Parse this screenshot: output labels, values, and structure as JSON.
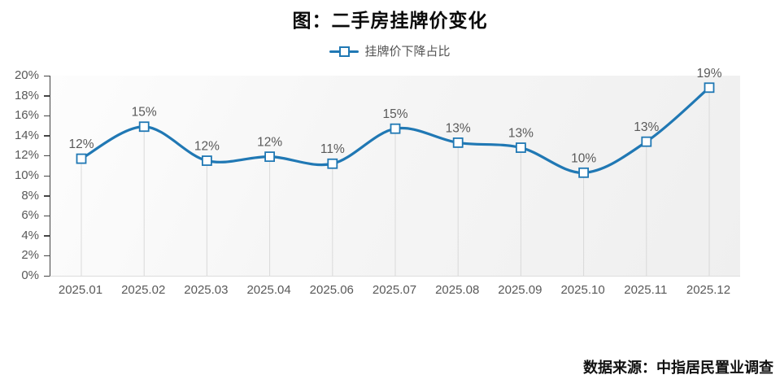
{
  "chart": {
    "title": "图：二手房挂牌价变化",
    "legend": "挂牌价下降占比",
    "source": "数据来源：中指居民置业调查",
    "accent_color": "#2078b4"
  },
  "chart_data": {
    "type": "line",
    "title": "图：二手房挂牌价变化",
    "series_name": "挂牌价下降占比",
    "categories": [
      "2025.01",
      "2025.02",
      "2025.03",
      "2025.04",
      "2025.06",
      "2025.07",
      "2025.08",
      "2025.09",
      "2025.10",
      "2025.11",
      "2025.12"
    ],
    "values": [
      12,
      15,
      12,
      12,
      11,
      15,
      13,
      13,
      10,
      13,
      19
    ],
    "labels": [
      "12%",
      "15%",
      "12%",
      "12%",
      "11%",
      "15%",
      "13%",
      "13%",
      "10%",
      "13%",
      "19%"
    ],
    "point_values": [
      11.7,
      14.9,
      11.5,
      11.9,
      11.2,
      14.7,
      13.3,
      12.8,
      10.3,
      13.4,
      18.8
    ],
    "y_ticks": [
      "0%",
      "2%",
      "4%",
      "6%",
      "8%",
      "10%",
      "12%",
      "14%",
      "16%",
      "18%",
      "20%"
    ],
    "ylim": [
      0,
      20
    ],
    "xlabel": "",
    "ylabel": "",
    "grid": false,
    "smooth": true,
    "marker": "hollow-square",
    "line_color": "#2078b4",
    "drop_line_color": "#d9d9d9",
    "label_color": "#595959",
    "legend_position": "top-center",
    "source": "数据来源：中指居民置业调查"
  }
}
